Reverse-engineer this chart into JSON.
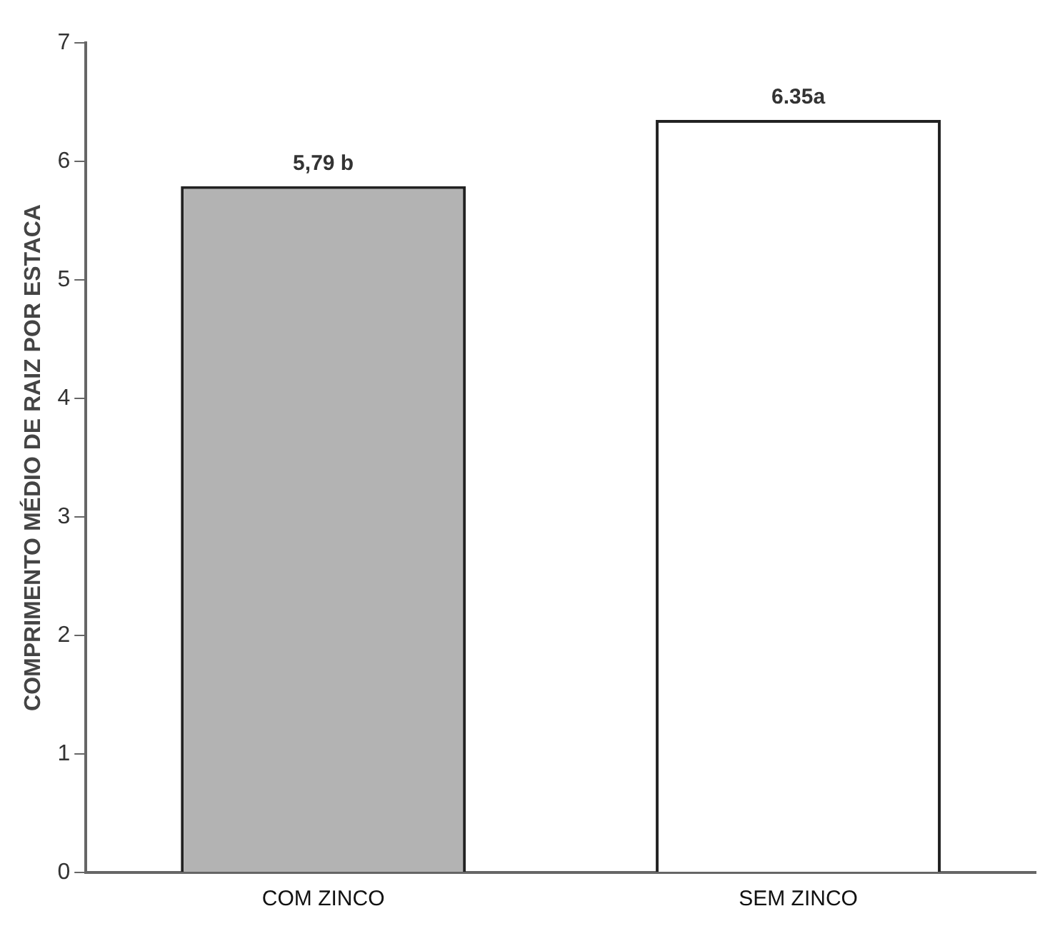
{
  "chart_data": {
    "type": "bar",
    "ylabel": "COMPRIMENTO MÉDIO DE RAIZ POR ESTACA",
    "categories": [
      "COM ZINCO",
      "SEM ZINCO"
    ],
    "values": [
      5.79,
      6.35
    ],
    "colors": [
      "#b3b3b3",
      "#ffffff"
    ],
    "value_labels": [
      "5,79 b",
      "6.35a"
    ],
    "ylim": [
      0,
      7
    ],
    "yticks": [
      0,
      1,
      2,
      3,
      4,
      5,
      6,
      7
    ],
    "grid": false,
    "legend": false
  }
}
